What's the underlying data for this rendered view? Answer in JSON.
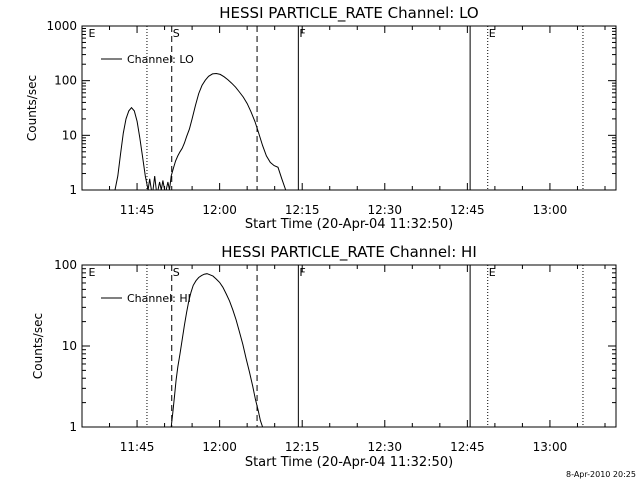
{
  "timestamp": "8-Apr-2010 20:25",
  "chart_data": [
    {
      "type": "line",
      "title": "HESSI PARTICLE_RATE Channel: LO",
      "xlabel": "Start Time (20-Apr-04 11:32:50)",
      "ylabel": "Counts/sec",
      "yscale": "log",
      "xlim_minutes": [
        695.0,
        792.0
      ],
      "ylim": [
        1,
        1000
      ],
      "x_ticks": [
        {
          "m": 705,
          "label": "11:45"
        },
        {
          "m": 720,
          "label": "12:00"
        },
        {
          "m": 735,
          "label": "12:15"
        },
        {
          "m": 750,
          "label": "12:30"
        },
        {
          "m": 765,
          "label": "12:45"
        },
        {
          "m": 780,
          "label": "13:00"
        }
      ],
      "y_ticks": [
        {
          "v": 1,
          "label": "1"
        },
        {
          "v": 10,
          "label": "10"
        },
        {
          "v": 100,
          "label": "100"
        },
        {
          "v": 1000,
          "label": "1000"
        }
      ],
      "legend": {
        "label": "Channel: LO",
        "position": "top-left"
      },
      "series": [
        {
          "name": "Channel: LO",
          "x_minutes": [
            701.0,
            701.5,
            702.0,
            702.5,
            703.0,
            703.5,
            704.0,
            704.5,
            705.0,
            705.5,
            706.0,
            706.5,
            707.0,
            707.3,
            707.6,
            707.9,
            708.2,
            708.5,
            708.8,
            709.1,
            709.4,
            709.7,
            710.0,
            710.3,
            710.6,
            710.9,
            711.2,
            711.6,
            712.0,
            712.4,
            712.8,
            713.2,
            713.6,
            714.0,
            714.5,
            715.0,
            715.6,
            716.2,
            716.8,
            717.4,
            718.0,
            718.7,
            719.4,
            720.1,
            720.8,
            721.5,
            722.2,
            722.9,
            723.6,
            724.3,
            725.0,
            725.7,
            726.4,
            727.1,
            727.8,
            728.5,
            729.2,
            729.9,
            730.6,
            731.3,
            732.0
          ],
          "values": [
            1.0,
            1.8,
            4.5,
            11,
            20,
            28,
            32,
            28,
            18,
            9,
            4,
            1.8,
            1.0,
            1.6,
            1.0,
            1.0,
            1.8,
            1.0,
            1.0,
            1.4,
            1.0,
            1.5,
            1.0,
            1.0,
            1.4,
            1.0,
            1.8,
            2.5,
            3.4,
            4.2,
            5.0,
            5.8,
            7.2,
            9.5,
            13,
            20,
            35,
            58,
            82,
            102,
            120,
            133,
            135,
            130,
            118,
            104,
            90,
            76,
            62,
            50,
            38,
            27,
            18,
            11,
            6.5,
            4.2,
            3.2,
            2.8,
            2.6,
            1.6,
            1.0
          ]
        }
      ],
      "markers": [
        {
          "m": 696.0,
          "label": "E",
          "style": "none"
        },
        {
          "m": 706.8,
          "label": "",
          "style": "dotted"
        },
        {
          "m": 711.3,
          "label": "S",
          "style": "dashed"
        },
        {
          "m": 726.8,
          "label": "",
          "style": "dashed"
        },
        {
          "m": 734.3,
          "label": "F",
          "style": "solid"
        },
        {
          "m": 765.5,
          "label": "",
          "style": "solid"
        },
        {
          "m": 768.7,
          "label": "E",
          "style": "dotted"
        },
        {
          "m": 786.0,
          "label": "",
          "style": "dotted"
        }
      ]
    },
    {
      "type": "line",
      "title": "HESSI PARTICLE_RATE Channel: HI",
      "xlabel": "Start Time (20-Apr-04 11:32:50)",
      "ylabel": "Counts/sec",
      "yscale": "log",
      "xlim_minutes": [
        695.0,
        792.0
      ],
      "ylim": [
        1,
        100
      ],
      "x_ticks": [
        {
          "m": 705,
          "label": "11:45"
        },
        {
          "m": 720,
          "label": "12:00"
        },
        {
          "m": 735,
          "label": "12:15"
        },
        {
          "m": 750,
          "label": "12:30"
        },
        {
          "m": 765,
          "label": "12:45"
        },
        {
          "m": 780,
          "label": "13:00"
        }
      ],
      "y_ticks": [
        {
          "v": 1,
          "label": "1"
        },
        {
          "v": 10,
          "label": "10"
        },
        {
          "v": 100,
          "label": "100"
        }
      ],
      "legend": {
        "label": "Channel: HI",
        "position": "top-left"
      },
      "series": [
        {
          "name": "Channel: HI",
          "x_minutes": [
            711.2,
            711.5,
            711.8,
            712.1,
            712.4,
            712.8,
            713.2,
            713.6,
            714.0,
            714.4,
            714.8,
            715.2,
            715.7,
            716.2,
            716.7,
            717.2,
            717.7,
            718.2,
            718.8,
            719.4,
            720.0,
            720.6,
            721.2,
            721.8,
            722.4,
            723.0,
            723.6,
            724.2,
            724.8,
            725.4,
            726.0,
            726.5,
            727.0,
            727.4,
            727.8
          ],
          "values": [
            1.0,
            1.5,
            2.4,
            3.8,
            5.5,
            8,
            12,
            18,
            26,
            36,
            46,
            56,
            64,
            70,
            74,
            77,
            78,
            76,
            73,
            67,
            61,
            53,
            44,
            36,
            28,
            21,
            15,
            10.5,
            7,
            4.8,
            3.2,
            2.2,
            1.6,
            1.2,
            1.0
          ]
        }
      ],
      "markers": [
        {
          "m": 696.0,
          "label": "E",
          "style": "none"
        },
        {
          "m": 706.8,
          "label": "",
          "style": "dotted"
        },
        {
          "m": 711.3,
          "label": "S",
          "style": "dashed"
        },
        {
          "m": 726.8,
          "label": "",
          "style": "dashed"
        },
        {
          "m": 734.3,
          "label": "F",
          "style": "solid"
        },
        {
          "m": 765.5,
          "label": "",
          "style": "solid"
        },
        {
          "m": 768.7,
          "label": "E",
          "style": "dotted"
        },
        {
          "m": 786.0,
          "label": "",
          "style": "dotted"
        }
      ]
    }
  ]
}
